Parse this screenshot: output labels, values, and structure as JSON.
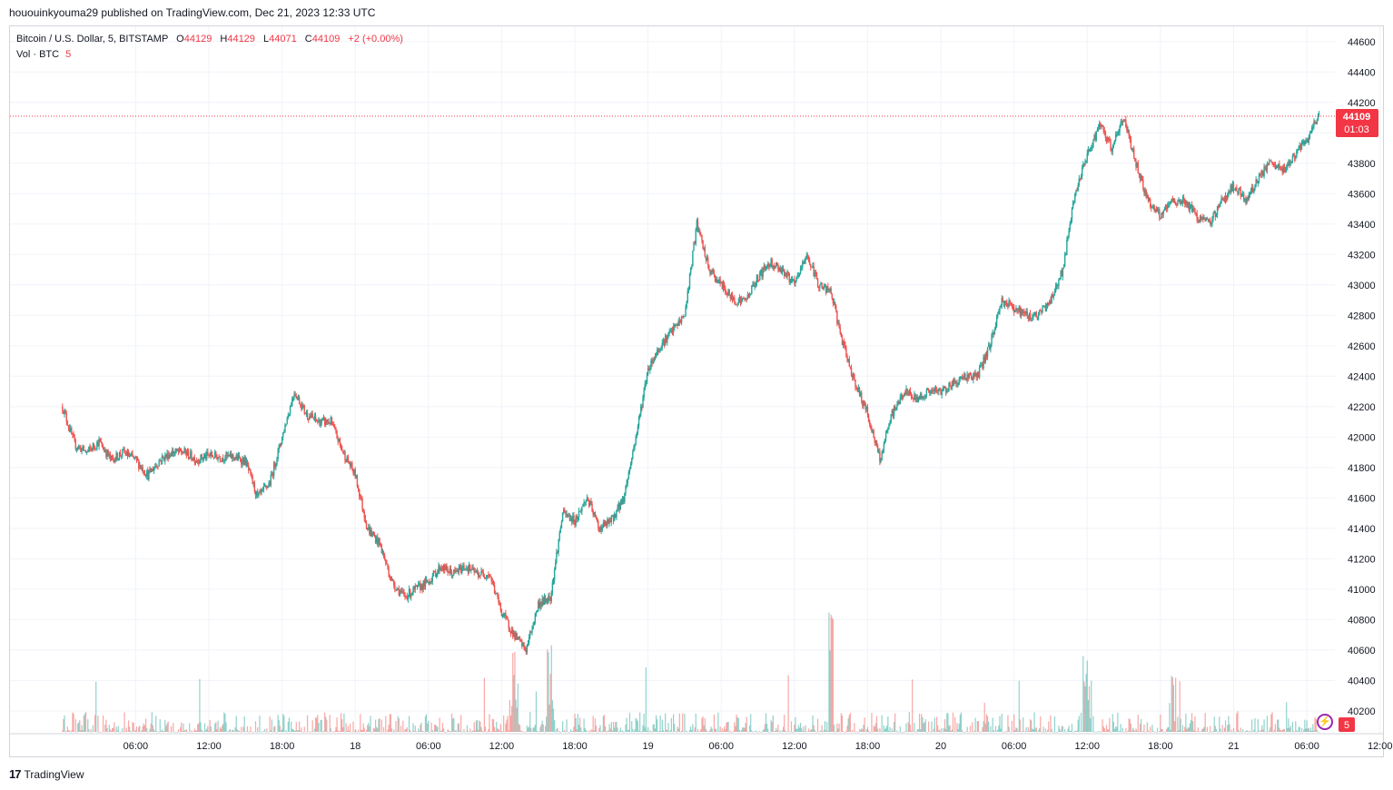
{
  "header": {
    "text": "hououinkyouma29 published on TradingView.com, Dec 21, 2023 12:33 UTC"
  },
  "legend": {
    "symbol": "Bitcoin / U.S. Dollar, 5, BITSTAMP",
    "o_label": "O",
    "o_value": "44129",
    "h_label": "H",
    "h_value": "44129",
    "l_label": "L",
    "l_value": "44071",
    "c_label": "C",
    "c_value": "44109",
    "change": "+2 (+0.00%)",
    "vol_label": "Vol · BTC",
    "vol_value": "5"
  },
  "price_tag": {
    "price": "44109",
    "countdown": "01:03"
  },
  "volume_tag": "5",
  "footer": {
    "brand": "TradingView"
  },
  "colors": {
    "up": "#26a69a",
    "down": "#ef5350",
    "tag": "#f23645",
    "grid": "#f0f3fa",
    "text": "#131722"
  },
  "chart_data": {
    "type": "candlestick",
    "interval": "5m",
    "y_ticks": [
      40200,
      40400,
      40600,
      40800,
      41000,
      41200,
      41400,
      41600,
      41800,
      42000,
      42200,
      42400,
      42600,
      42800,
      43000,
      43200,
      43400,
      43600,
      43800,
      44000,
      44200,
      44400,
      44600
    ],
    "x_ticks": [
      "06:00",
      "12:00",
      "18:00",
      "18",
      "06:00",
      "12:00",
      "18:00",
      "19",
      "06:00",
      "12:00",
      "18:00",
      "20",
      "06:00",
      "12:00",
      "18:00",
      "21",
      "06:00",
      "12:00"
    ],
    "ylim": [
      40050,
      44700
    ],
    "x_hours_range": [
      -4.3,
      104.3
    ],
    "current_price": 44109,
    "price_path": [
      [
        0,
        42200
      ],
      [
        1,
        41950
      ],
      [
        2,
        41900
      ],
      [
        3,
        41970
      ],
      [
        4,
        41850
      ],
      [
        5,
        41900
      ],
      [
        6,
        41850
      ],
      [
        7,
        41750
      ],
      [
        8,
        41850
      ],
      [
        9,
        41900
      ],
      [
        10,
        41900
      ],
      [
        11,
        41850
      ],
      [
        12,
        41880
      ],
      [
        13,
        41870
      ],
      [
        14,
        41870
      ],
      [
        15,
        41840
      ],
      [
        16,
        41600
      ],
      [
        17,
        41700
      ],
      [
        18,
        42000
      ],
      [
        19,
        42300
      ],
      [
        20,
        42150
      ],
      [
        21,
        42100
      ],
      [
        22,
        42100
      ],
      [
        23,
        41900
      ],
      [
        24,
        41750
      ],
      [
        25,
        41400
      ],
      [
        26,
        41300
      ],
      [
        27,
        41050
      ],
      [
        28,
        40950
      ],
      [
        29,
        41000
      ],
      [
        30,
        41050
      ],
      [
        31,
        41150
      ],
      [
        32,
        41100
      ],
      [
        33,
        41150
      ],
      [
        34,
        41100
      ],
      [
        35,
        41100
      ],
      [
        36,
        40850
      ],
      [
        37,
        40700
      ],
      [
        38,
        40600
      ],
      [
        39,
        40900
      ],
      [
        40,
        40950
      ],
      [
        41,
        41500
      ],
      [
        42,
        41450
      ],
      [
        43,
        41600
      ],
      [
        44,
        41400
      ],
      [
        45,
        41450
      ],
      [
        46,
        41600
      ],
      [
        47,
        42000
      ],
      [
        48,
        42450
      ],
      [
        49,
        42600
      ],
      [
        50,
        42700
      ],
      [
        51,
        42800
      ],
      [
        52,
        43400
      ],
      [
        53,
        43100
      ],
      [
        54,
        43000
      ],
      [
        55,
        42900
      ],
      [
        56,
        42900
      ],
      [
        57,
        43050
      ],
      [
        58,
        43150
      ],
      [
        59,
        43100
      ],
      [
        60,
        43000
      ],
      [
        61,
        43200
      ],
      [
        62,
        43000
      ],
      [
        63,
        42950
      ],
      [
        64,
        42600
      ],
      [
        65,
        42350
      ],
      [
        66,
        42150
      ],
      [
        67,
        41850
      ],
      [
        68,
        42150
      ],
      [
        69,
        42300
      ],
      [
        70,
        42250
      ],
      [
        71,
        42300
      ],
      [
        72,
        42300
      ],
      [
        73,
        42350
      ],
      [
        74,
        42400
      ],
      [
        75,
        42400
      ],
      [
        76,
        42600
      ],
      [
        77,
        42900
      ],
      [
        78,
        42850
      ],
      [
        79,
        42800
      ],
      [
        80,
        42800
      ],
      [
        81,
        42900
      ],
      [
        82,
        43100
      ],
      [
        83,
        43600
      ],
      [
        84,
        43850
      ],
      [
        85,
        44050
      ],
      [
        86,
        43900
      ],
      [
        87,
        44100
      ],
      [
        88,
        43800
      ],
      [
        89,
        43550
      ],
      [
        90,
        43450
      ],
      [
        91,
        43550
      ],
      [
        92,
        43550
      ],
      [
        93,
        43450
      ],
      [
        94,
        43400
      ],
      [
        95,
        43550
      ],
      [
        96,
        43650
      ],
      [
        97,
        43550
      ],
      [
        98,
        43700
      ],
      [
        99,
        43800
      ],
      [
        100,
        43750
      ],
      [
        101,
        43850
      ],
      [
        102,
        43950
      ],
      [
        103,
        44109
      ]
    ],
    "volume_hint": "volume bars along bottom, spikes near 13:00 on 19, 16:00 on 19, 15:00 on 20"
  }
}
